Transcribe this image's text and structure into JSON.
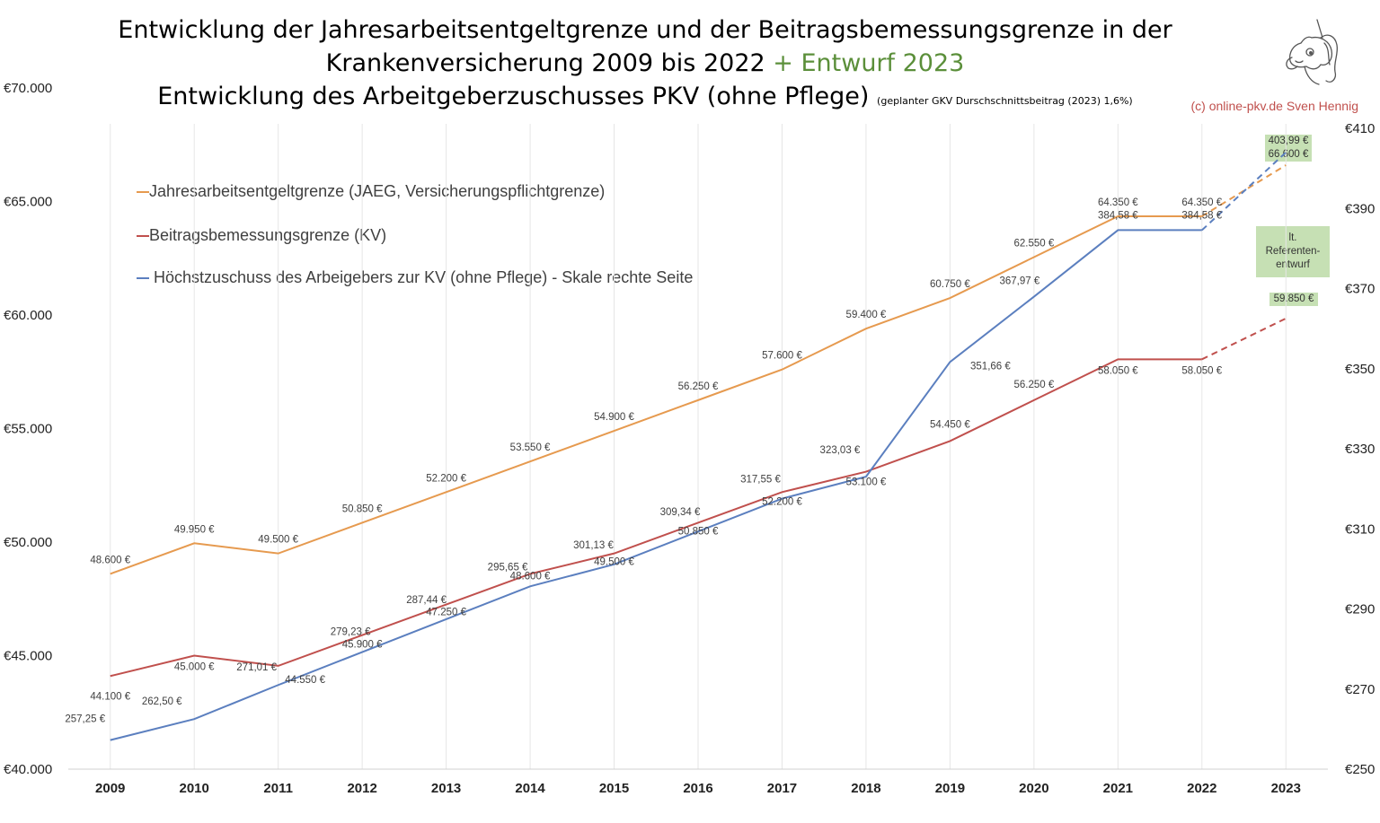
{
  "title": {
    "line1": "Entwicklung der Jahresarbeitsentgeltgrenze und der Beitragsbemessungsgrenze in der",
    "line2_main": "Krankenversicherung 2009 bis 2022",
    "line2_green": " + Entwurf 2023",
    "line3_main": "Entwicklung des Arbeitgeberzuschusses PKV (ohne Pflege)",
    "line3_note": "(geplanter GKV Durschschnittsbeitrag (2023) 1,6%)"
  },
  "copyright": "(c) online-pkv.de Sven Hennig",
  "colors": {
    "jaeg": "#e69a4f",
    "bbg": "#c0504d",
    "zuschuss": "#5b7fbf",
    "callout_bg": "#c6e0b4",
    "grid": "#e6e6e6"
  },
  "legend": [
    "Jahresarbeitsentgeltgrenze (JAEG, Versicherungspflichtgrenze)",
    "Beitragsbemessungsgrenze (KV)",
    "Höchstzuschuss des Arbeigebers zur KV (ohne Pflege) - Skale rechte Seite"
  ],
  "callouts": {
    "top": [
      "403,99 €",
      "66.600 €"
    ],
    "ref": [
      "lt.",
      "Referenten-",
      "entwurf"
    ],
    "bbg2023": "59.850 €"
  },
  "chart_data": {
    "type": "line",
    "categories": [
      "2009",
      "2010",
      "2011",
      "2012",
      "2013",
      "2014",
      "2015",
      "2016",
      "2017",
      "2018",
      "2019",
      "2020",
      "2021",
      "2022",
      "2023"
    ],
    "y_left": {
      "min": 40000,
      "max": 70000,
      "step": 5000,
      "tick_labels": [
        "€40.000",
        "€45.000",
        "€50.000",
        "€55.000",
        "€60.000",
        "€65.000",
        "€70.000"
      ]
    },
    "y_right": {
      "min": 250,
      "max": 410,
      "step": 20,
      "tick_labels": [
        "€250",
        "€270",
        "€290",
        "€310",
        "€330",
        "€350",
        "€370",
        "€390",
        "€410"
      ]
    },
    "series": [
      {
        "name": "Jahresarbeitsentgeltgrenze (JAEG, Versicherungspflichtgrenze)",
        "axis": "left",
        "color": "#e69a4f",
        "values": [
          48600,
          49950,
          49500,
          50850,
          52200,
          53550,
          54900,
          56250,
          57600,
          59400,
          60750,
          62550,
          64350,
          64350,
          66600
        ],
        "labels": [
          "48.600 €",
          "49.950 €",
          "49.500 €",
          "50.850 €",
          "52.200 €",
          "53.550 €",
          "54.900 €",
          "56.250 €",
          "57.600 €",
          "59.400 €",
          "60.750 €",
          "62.550 €",
          "64.350 €",
          "64.350 €",
          ""
        ],
        "dashed_from_index": 13
      },
      {
        "name": "Beitragsbemessungsgrenze (KV)",
        "axis": "left",
        "color": "#c0504d",
        "values": [
          44100,
          45000,
          44550,
          45900,
          47250,
          48600,
          49500,
          50850,
          52200,
          53100,
          54450,
          56250,
          58050,
          58050,
          59850
        ],
        "labels": [
          "44.100 €",
          "45.000 €",
          "44.550 €",
          "45.900 €",
          "47.250 €",
          "48.600 €",
          "49.500 €",
          "50.850 €",
          "52.200 €",
          "53.100 €",
          "54.450 €",
          "56.250 €",
          "58.050 €",
          "58.050 €",
          ""
        ],
        "dashed_from_index": 13
      },
      {
        "name": "Höchstzuschuss des Arbeigebers zur KV (ohne Pflege) - Skale rechte Seite",
        "axis": "right",
        "color": "#5b7fbf",
        "values": [
          257.25,
          262.5,
          271.01,
          279.23,
          287.44,
          295.65,
          301.13,
          309.34,
          317.55,
          323.03,
          351.66,
          367.97,
          384.58,
          384.58,
          403.99
        ],
        "labels": [
          "257,25 €",
          "262,50 €",
          "271,01 €",
          "279,23 €",
          "287,44 €",
          "295,65 €",
          "301,13 €",
          "309,34 €",
          "317,55 €",
          "323,03 €",
          "351,66 €",
          "367,97 €",
          "384,58 €",
          "384,58 €",
          ""
        ],
        "dashed_from_index": 13
      }
    ]
  }
}
